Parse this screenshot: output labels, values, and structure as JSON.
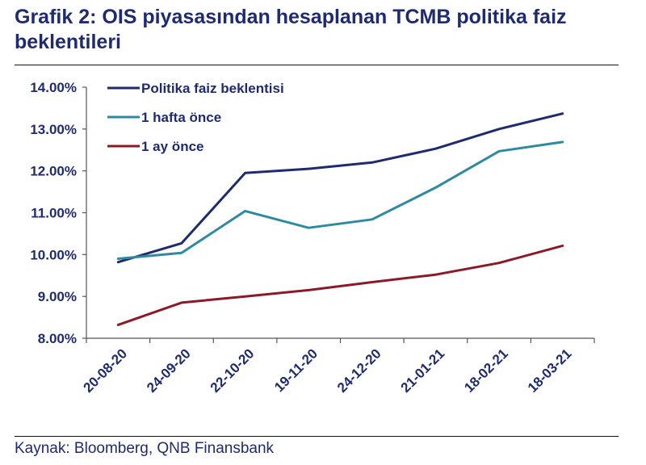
{
  "figure": {
    "title": "Grafik 2: OIS piyasasından hesaplanan TCMB politika faiz beklentileri",
    "source": "Kaynak: Bloomberg, QNB Finansbank"
  },
  "colors": {
    "title_text": "#1f2b6e",
    "axis": "#555555",
    "label_text": "#1f2b6e"
  },
  "chart_data": {
    "type": "line",
    "title": "Grafik 2: OIS piyasasından hesaplanan TCMB politika faiz beklentileri",
    "xlabel": "",
    "ylabel": "",
    "grid": false,
    "legend_position": "top-left",
    "ylim": [
      8.0,
      14.0
    ],
    "y_ticks": [
      8.0,
      9.0,
      10.0,
      11.0,
      12.0,
      13.0,
      14.0
    ],
    "y_tick_labels": [
      "8.00%",
      "9.00%",
      "10.00%",
      "11.00%",
      "12.00%",
      "13.00%",
      "14.00%"
    ],
    "categories": [
      "20-08-20",
      "24-09-20",
      "22-10-20",
      "19-11-20",
      "24-12-20",
      "21-01-21",
      "18-02-21",
      "18-03-21"
    ],
    "series": [
      {
        "name": "Politika faiz beklentisi",
        "color": "#1f2b6e",
        "values": [
          9.82,
          10.27,
          11.95,
          12.05,
          12.2,
          12.53,
          13.0,
          13.37
        ]
      },
      {
        "name": "1 hafta önce",
        "color": "#2e8aa0",
        "values": [
          9.9,
          10.04,
          11.04,
          10.64,
          10.84,
          11.6,
          12.47,
          12.69
        ]
      },
      {
        "name": "1 ay önce",
        "color": "#8b1a28",
        "values": [
          8.32,
          8.85,
          9.0,
          9.15,
          9.34,
          9.52,
          9.8,
          10.21
        ]
      }
    ]
  }
}
